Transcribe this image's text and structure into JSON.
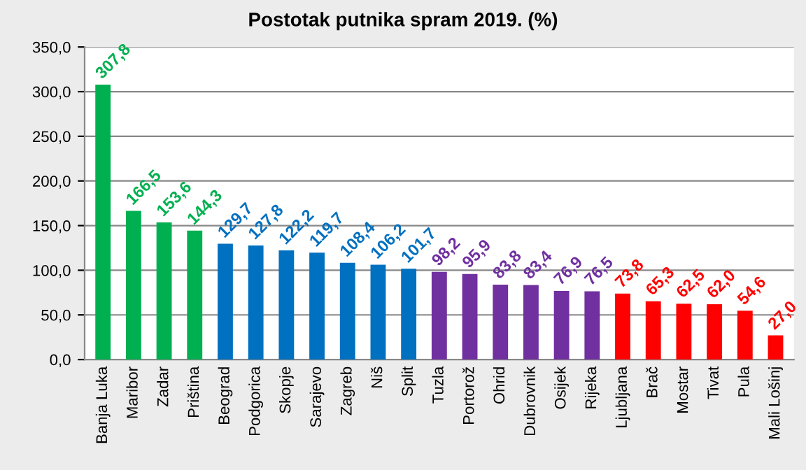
{
  "chart_data": {
    "type": "bar",
    "title": "Postotak putnika spram 2019. (%)",
    "categories": [
      "Banja Luka",
      "Maribor",
      "Zadar",
      "Priština",
      "Beograd",
      "Podgorica",
      "Skopje",
      "Sarajevo",
      "Zagreb",
      "Niš",
      "Split",
      "Tuzla",
      "Portorož",
      "Ohrid",
      "Dubrovnik",
      "Osijek",
      "Rijeka",
      "Ljubljana",
      "Brač",
      "Mostar",
      "Tivat",
      "Pula",
      "Mali Lošinj"
    ],
    "values": [
      307.8,
      166.5,
      153.6,
      144.3,
      129.7,
      127.8,
      122.2,
      119.7,
      108.4,
      106.2,
      101.7,
      98.2,
      95.9,
      83.8,
      83.4,
      76.9,
      76.5,
      73.8,
      65.3,
      62.5,
      62.0,
      54.6,
      27.0
    ],
    "value_labels": [
      "307,8",
      "166,5",
      "153,6",
      "144,3",
      "129,7",
      "127,8",
      "122,2",
      "119,7",
      "108,4",
      "106,2",
      "101,7",
      "98,2",
      "95,9",
      "83,8",
      "83,4",
      "76,9",
      "76,5",
      "73,8",
      "65,3",
      "62,5",
      "62,0",
      "54,6",
      "27,0"
    ],
    "colors": [
      "#00b050",
      "#00b050",
      "#00b050",
      "#00b050",
      "#0070c0",
      "#0070c0",
      "#0070c0",
      "#0070c0",
      "#0070c0",
      "#0070c0",
      "#0070c0",
      "#7030a0",
      "#7030a0",
      "#7030a0",
      "#7030a0",
      "#7030a0",
      "#7030a0",
      "#ff0000",
      "#ff0000",
      "#ff0000",
      "#ff0000",
      "#ff0000",
      "#ff0000"
    ],
    "ylim": [
      0,
      350
    ],
    "yticks": [
      {
        "value": 0,
        "label": "0,0"
      },
      {
        "value": 50,
        "label": "50,0"
      },
      {
        "value": 100,
        "label": "100,0"
      },
      {
        "value": 150,
        "label": "150,0"
      },
      {
        "value": 200,
        "label": "200,0"
      },
      {
        "value": 250,
        "label": "250,0"
      },
      {
        "value": 300,
        "label": "300,0"
      },
      {
        "value": 350,
        "label": "350,0"
      }
    ],
    "grid": "y",
    "legend": false
  }
}
